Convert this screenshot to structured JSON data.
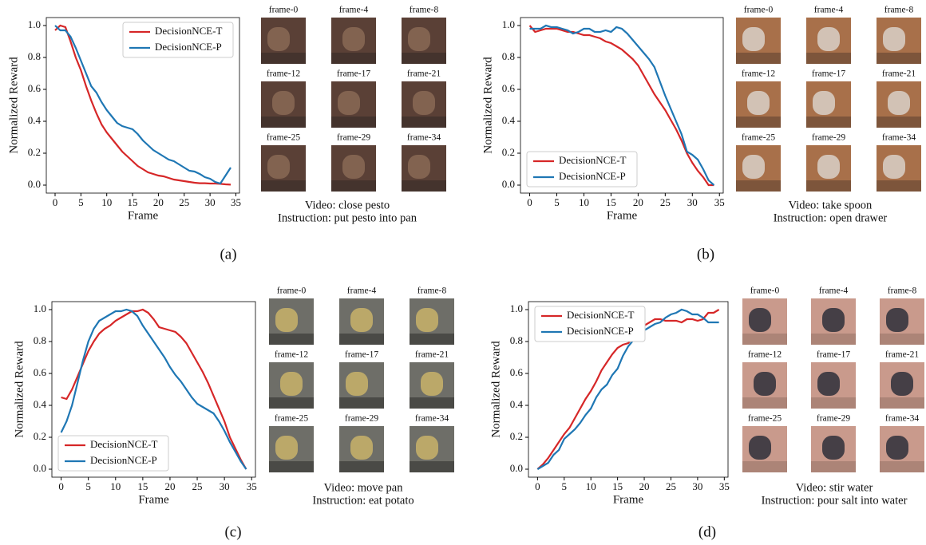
{
  "chart_data": [
    {
      "type": "line",
      "x_label": "Frame",
      "y_label": "Normalized Reward",
      "legend": "upper right",
      "x": [
        0,
        1,
        2,
        3,
        4,
        5,
        6,
        7,
        8,
        9,
        10,
        11,
        12,
        13,
        14,
        15,
        16,
        17,
        18,
        19,
        20,
        21,
        22,
        23,
        24,
        25,
        26,
        27,
        28,
        29,
        30,
        31,
        32,
        33,
        34
      ],
      "xlim": [
        -1.7,
        35.7
      ],
      "ylim": [
        -0.05,
        1.05
      ],
      "xticks": [
        0,
        5,
        10,
        15,
        20,
        25,
        30,
        35
      ],
      "yticks": [
        {
          "value": 0,
          "label": "0.0"
        },
        {
          "value": 0.2,
          "label": "0.2"
        },
        {
          "value": 0.4,
          "label": "0.4"
        },
        {
          "value": 0.6,
          "label": "0.6"
        },
        {
          "value": 0.8,
          "label": "0.8"
        },
        {
          "value": 1,
          "label": "1.0"
        }
      ],
      "series": [
        {
          "name": "DecisionNCE-T",
          "color": "#d62728",
          "values": [
            0.97,
            1.0,
            0.99,
            0.9,
            0.8,
            0.72,
            0.62,
            0.53,
            0.45,
            0.38,
            0.33,
            0.29,
            0.25,
            0.21,
            0.18,
            0.15,
            0.12,
            0.1,
            0.08,
            0.07,
            0.06,
            0.055,
            0.045,
            0.035,
            0.03,
            0.025,
            0.02,
            0.015,
            0.012,
            0.012,
            0.01,
            0.01,
            0.008,
            0.005,
            0.003
          ]
        },
        {
          "name": "DecisionNCE-P",
          "color": "#1f77b4",
          "values": [
            1.0,
            0.97,
            0.97,
            0.93,
            0.86,
            0.78,
            0.7,
            0.62,
            0.58,
            0.52,
            0.47,
            0.43,
            0.39,
            0.37,
            0.36,
            0.35,
            0.32,
            0.28,
            0.25,
            0.22,
            0.2,
            0.18,
            0.16,
            0.15,
            0.13,
            0.11,
            0.09,
            0.085,
            0.07,
            0.05,
            0.04,
            0.02,
            0.01,
            0.06,
            0.11
          ]
        }
      ]
    },
    {
      "type": "line",
      "x_label": "Frame",
      "y_label": "Normalized Reward",
      "legend": "lower left",
      "x": [
        0,
        1,
        2,
        3,
        4,
        5,
        6,
        7,
        8,
        9,
        10,
        11,
        12,
        13,
        14,
        15,
        16,
        17,
        18,
        19,
        20,
        21,
        22,
        23,
        24,
        25,
        26,
        27,
        28,
        29,
        30,
        31,
        32,
        33,
        34
      ],
      "xlim": [
        -1.7,
        35.7
      ],
      "ylim": [
        -0.05,
        1.05
      ],
      "xticks": [
        0,
        5,
        10,
        15,
        20,
        25,
        30,
        35
      ],
      "yticks": [
        {
          "value": 0,
          "label": "0.0"
        },
        {
          "value": 0.2,
          "label": "0.2"
        },
        {
          "value": 0.4,
          "label": "0.4"
        },
        {
          "value": 0.6,
          "label": "0.6"
        },
        {
          "value": 0.8,
          "label": "0.8"
        },
        {
          "value": 1,
          "label": "1.0"
        }
      ],
      "series": [
        {
          "name": "DecisionNCE-T",
          "color": "#d62728",
          "values": [
            1.0,
            0.96,
            0.97,
            0.98,
            0.98,
            0.98,
            0.97,
            0.96,
            0.96,
            0.95,
            0.94,
            0.94,
            0.93,
            0.92,
            0.9,
            0.89,
            0.87,
            0.85,
            0.82,
            0.79,
            0.75,
            0.69,
            0.63,
            0.57,
            0.52,
            0.47,
            0.41,
            0.35,
            0.28,
            0.2,
            0.14,
            0.09,
            0.05,
            0.0,
            0.0
          ]
        },
        {
          "name": "DecisionNCE-P",
          "color": "#1f77b4",
          "values": [
            0.98,
            0.98,
            0.98,
            1.0,
            0.99,
            0.99,
            0.98,
            0.97,
            0.95,
            0.96,
            0.98,
            0.98,
            0.96,
            0.96,
            0.97,
            0.96,
            0.99,
            0.98,
            0.95,
            0.91,
            0.87,
            0.83,
            0.79,
            0.74,
            0.65,
            0.56,
            0.48,
            0.4,
            0.32,
            0.21,
            0.19,
            0.16,
            0.1,
            0.03,
            0.0
          ]
        }
      ]
    },
    {
      "type": "line",
      "x_label": "Frame",
      "y_label": "Normalized Reward",
      "legend": "lower left",
      "x": [
        0,
        1,
        2,
        3,
        4,
        5,
        6,
        7,
        8,
        9,
        10,
        11,
        12,
        13,
        14,
        15,
        16,
        17,
        18,
        19,
        20,
        21,
        22,
        23,
        24,
        25,
        26,
        27,
        28,
        29,
        30,
        31,
        32,
        33,
        34
      ],
      "xlim": [
        -1.7,
        35.7
      ],
      "ylim": [
        -0.05,
        1.05
      ],
      "xticks": [
        0,
        5,
        10,
        15,
        20,
        25,
        30,
        35
      ],
      "yticks": [
        {
          "value": 0,
          "label": "0.0"
        },
        {
          "value": 0.2,
          "label": "0.2"
        },
        {
          "value": 0.4,
          "label": "0.4"
        },
        {
          "value": 0.6,
          "label": "0.6"
        },
        {
          "value": 0.8,
          "label": "0.8"
        },
        {
          "value": 1,
          "label": "1.0"
        }
      ],
      "series": [
        {
          "name": "DecisionNCE-T",
          "color": "#d62728",
          "values": [
            0.45,
            0.44,
            0.5,
            0.58,
            0.66,
            0.74,
            0.8,
            0.85,
            0.88,
            0.9,
            0.93,
            0.95,
            0.97,
            0.99,
            0.99,
            1.0,
            0.98,
            0.94,
            0.89,
            0.88,
            0.87,
            0.86,
            0.83,
            0.79,
            0.73,
            0.67,
            0.61,
            0.54,
            0.46,
            0.38,
            0.3,
            0.2,
            0.13,
            0.06,
            0.0
          ]
        },
        {
          "name": "DecisionNCE-P",
          "color": "#1f77b4",
          "values": [
            0.23,
            0.3,
            0.4,
            0.54,
            0.68,
            0.8,
            0.88,
            0.93,
            0.95,
            0.97,
            0.99,
            0.99,
            1.0,
            0.99,
            0.96,
            0.9,
            0.85,
            0.8,
            0.75,
            0.7,
            0.64,
            0.59,
            0.55,
            0.5,
            0.45,
            0.41,
            0.39,
            0.37,
            0.35,
            0.3,
            0.24,
            0.17,
            0.11,
            0.05,
            0.0
          ]
        }
      ]
    },
    {
      "type": "line",
      "x_label": "Frame",
      "y_label": "Normalized Reward",
      "legend": "upper left",
      "x": [
        0,
        1,
        2,
        3,
        4,
        5,
        6,
        7,
        8,
        9,
        10,
        11,
        12,
        13,
        14,
        15,
        16,
        17,
        18,
        19,
        20,
        21,
        22,
        23,
        24,
        25,
        26,
        27,
        28,
        29,
        30,
        31,
        32,
        33,
        34
      ],
      "xlim": [
        -1.7,
        35.7
      ],
      "ylim": [
        -0.05,
        1.05
      ],
      "xticks": [
        0,
        5,
        10,
        15,
        20,
        25,
        30,
        35
      ],
      "yticks": [
        {
          "value": 0,
          "label": "0.0"
        },
        {
          "value": 0.2,
          "label": "0.2"
        },
        {
          "value": 0.4,
          "label": "0.4"
        },
        {
          "value": 0.6,
          "label": "0.6"
        },
        {
          "value": 0.8,
          "label": "0.8"
        },
        {
          "value": 1,
          "label": "1.0"
        }
      ],
      "series": [
        {
          "name": "DecisionNCE-T",
          "color": "#d62728",
          "values": [
            0.0,
            0.03,
            0.07,
            0.12,
            0.17,
            0.22,
            0.26,
            0.32,
            0.38,
            0.44,
            0.49,
            0.55,
            0.62,
            0.67,
            0.72,
            0.76,
            0.78,
            0.79,
            0.83,
            0.87,
            0.9,
            0.92,
            0.94,
            0.94,
            0.93,
            0.93,
            0.93,
            0.92,
            0.94,
            0.94,
            0.93,
            0.94,
            0.98,
            0.98,
            1.0
          ]
        },
        {
          "name": "DecisionNCE-P",
          "color": "#1f77b4",
          "values": [
            0.0,
            0.02,
            0.04,
            0.09,
            0.12,
            0.19,
            0.22,
            0.25,
            0.29,
            0.34,
            0.38,
            0.45,
            0.5,
            0.53,
            0.59,
            0.63,
            0.71,
            0.77,
            0.81,
            0.84,
            0.87,
            0.89,
            0.91,
            0.92,
            0.95,
            0.97,
            0.98,
            1.0,
            0.99,
            0.97,
            0.97,
            0.95,
            0.92,
            0.92,
            0.92
          ]
        }
      ]
    }
  ],
  "panels": [
    {
      "frames": [
        "frame-0",
        "frame-4",
        "frame-8",
        "frame-12",
        "frame-17",
        "frame-21",
        "frame-25",
        "frame-29",
        "frame-34"
      ],
      "video": "Video: close pesto",
      "instruction": "Instruction: put pesto into pan",
      "label": "(a)"
    },
    {
      "frames": [
        "frame-0",
        "frame-4",
        "frame-8",
        "frame-12",
        "frame-17",
        "frame-21",
        "frame-25",
        "frame-29",
        "frame-34"
      ],
      "video": "Video: take spoon",
      "instruction": "Instruction: open drawer",
      "label": "(b)"
    },
    {
      "frames": [
        "frame-0",
        "frame-4",
        "frame-8",
        "frame-12",
        "frame-17",
        "frame-21",
        "frame-25",
        "frame-29",
        "frame-34"
      ],
      "video": "Video: move pan",
      "instruction": "Instruction: eat potato",
      "label": "(c)"
    },
    {
      "frames": [
        "frame-0",
        "frame-4",
        "frame-8",
        "frame-12",
        "frame-17",
        "frame-21",
        "frame-25",
        "frame-29",
        "frame-34"
      ],
      "video": "Video: stir water",
      "instruction": "Instruction: pour salt into water",
      "label": "(d)"
    }
  ]
}
